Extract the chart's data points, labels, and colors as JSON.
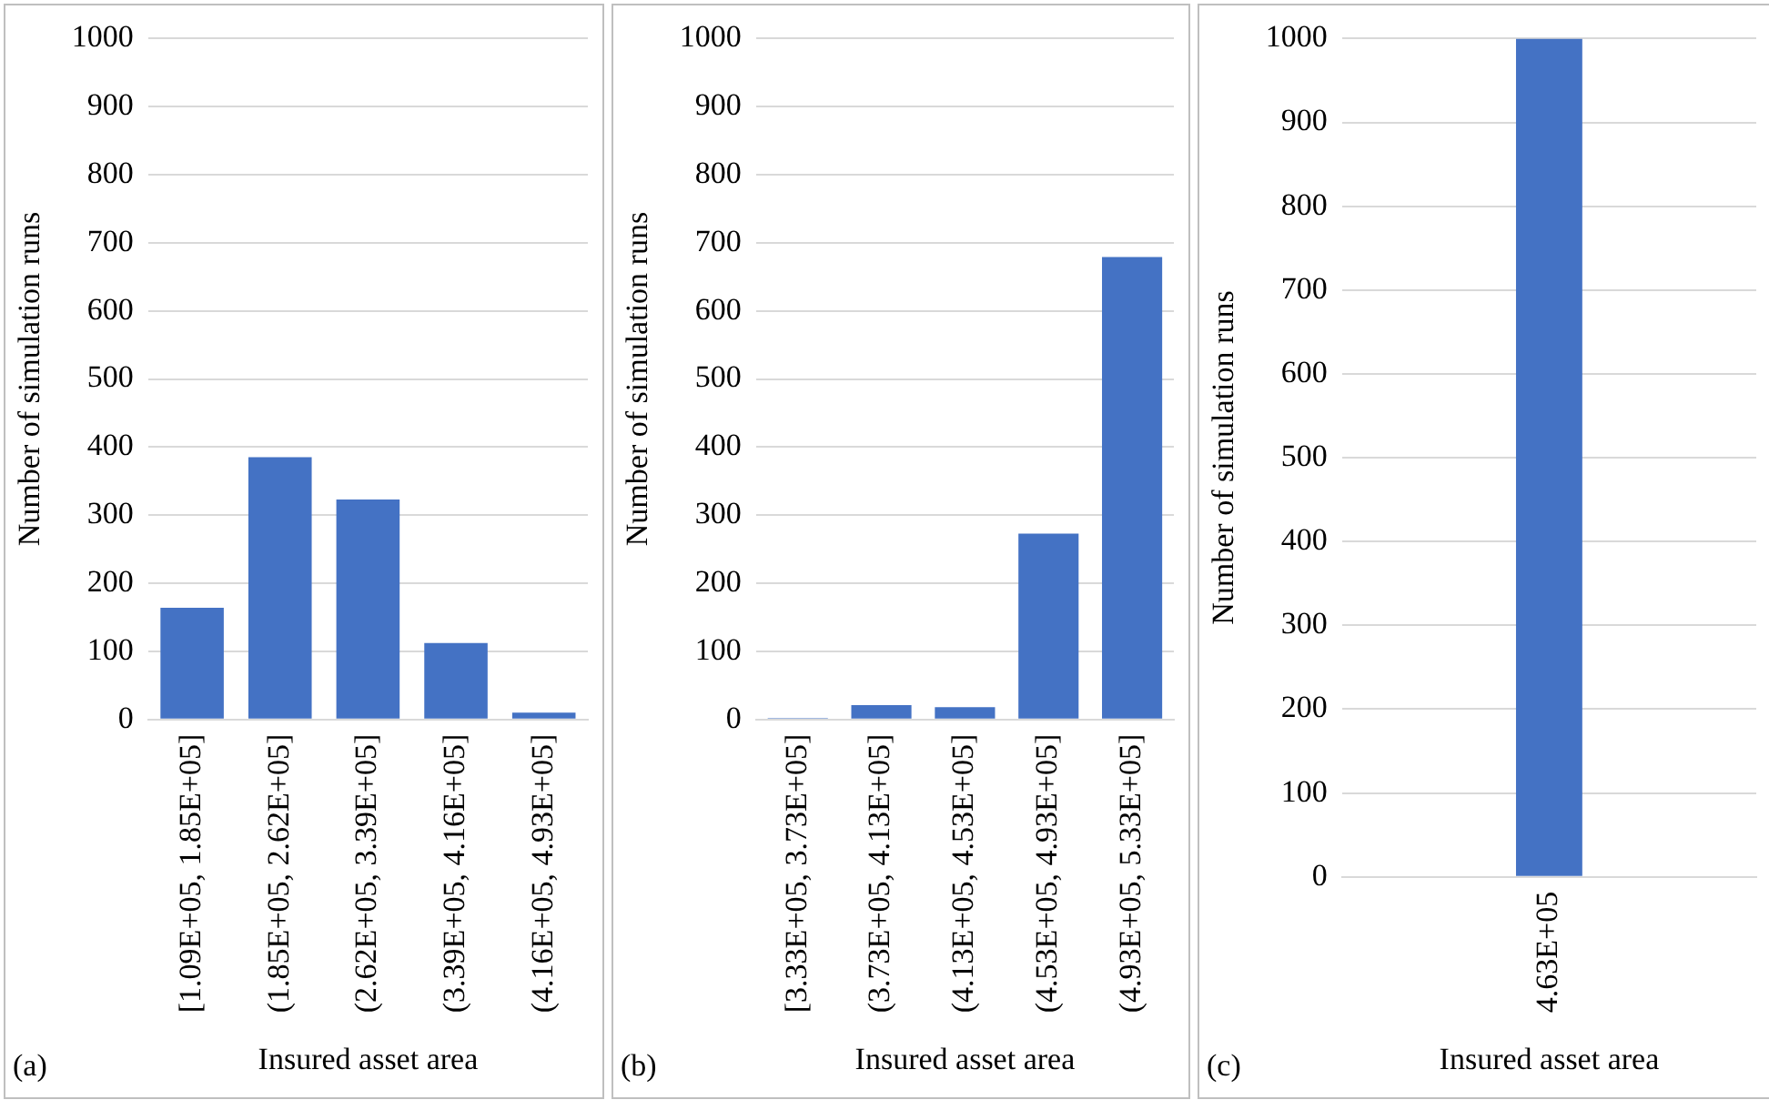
{
  "chart_data": [
    {
      "type": "bar",
      "categories": [
        "[1.09E+05, 1.85E+05]",
        "(1.85E+05, 2.62E+05]",
        "(2.62E+05, 3.39E+05]",
        "(3.39E+05, 4.16E+05]",
        "(4.16E+05, 4.93E+05]"
      ],
      "values": [
        164,
        385,
        323,
        112,
        10
      ],
      "color": "#4472c4",
      "ylim": [
        0,
        1000
      ],
      "yticks": [
        0,
        100,
        200,
        300,
        400,
        500,
        600,
        700,
        800,
        900,
        1000
      ],
      "grid": "y",
      "xlabel": "Insured asset area",
      "ylabel": "Number of simulation runs",
      "annotations": [
        "(a)"
      ]
    },
    {
      "type": "bar",
      "categories": [
        "[3.33E+05, 3.73E+05]",
        "(3.73E+05, 4.13E+05]",
        "(4.13E+05, 4.53E+05]",
        "(4.53E+05, 4.93E+05]",
        "(4.93E+05, 5.33E+05]"
      ],
      "values": [
        2,
        21,
        18,
        273,
        679
      ],
      "color": "#4472c4",
      "ylim": [
        0,
        1000
      ],
      "yticks": [
        0,
        100,
        200,
        300,
        400,
        500,
        600,
        700,
        800,
        900,
        1000
      ],
      "grid": "y",
      "xlabel": "Insured asset area",
      "ylabel": "Number of simulation runs",
      "annotations": [
        "(b)"
      ]
    },
    {
      "type": "bar",
      "categories": [
        "4.63E+05"
      ],
      "values": [
        1000
      ],
      "color": "#4472c4",
      "ylim": [
        0,
        1000
      ],
      "yticks": [
        0,
        100,
        200,
        300,
        400,
        500,
        600,
        700,
        800,
        900,
        1000
      ],
      "grid": "y",
      "xlabel": "Insured asset area",
      "ylabel": "Number of simulation runs",
      "annotations": [
        "(c)"
      ]
    }
  ]
}
